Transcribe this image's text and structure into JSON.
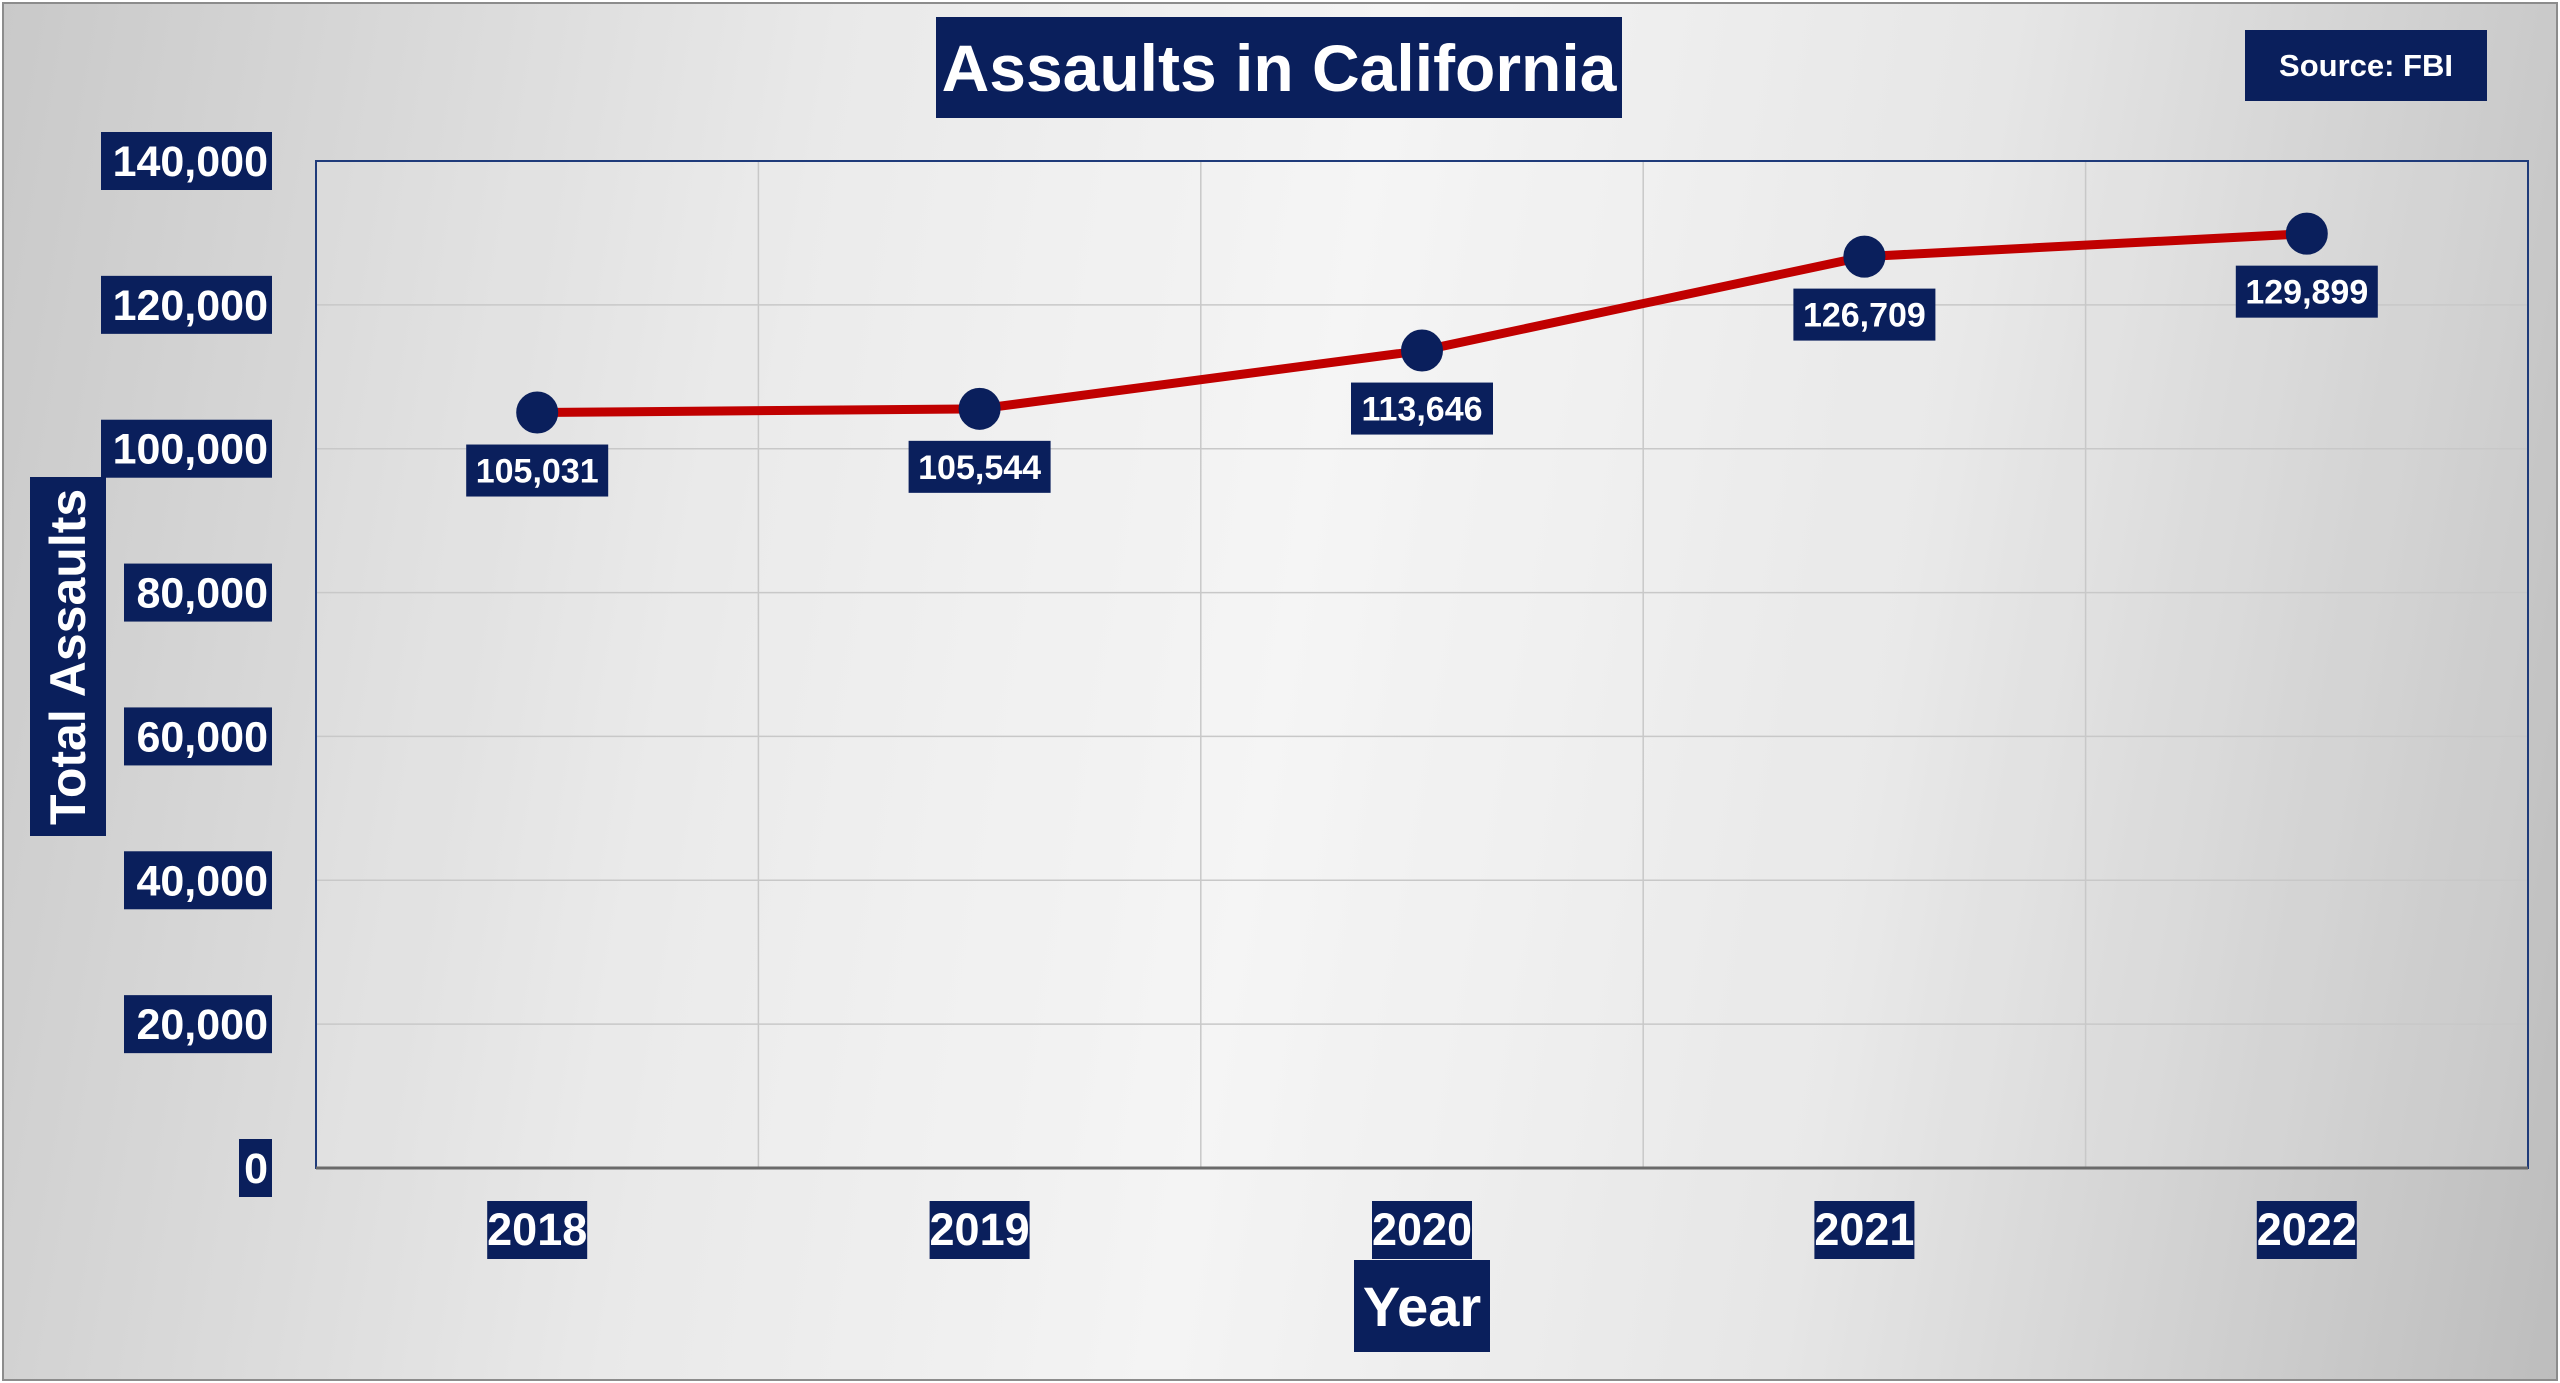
{
  "chart_data": {
    "type": "line",
    "title": "Assaults in California",
    "source": "Source: FBI",
    "xlabel": "Year",
    "ylabel": "Total Assaults",
    "categories": [
      "2018",
      "2019",
      "2020",
      "2021",
      "2022"
    ],
    "values": [
      105031,
      105544,
      113646,
      126709,
      129899
    ],
    "data_labels": [
      "105,031",
      "105,544",
      "113,646",
      "126,709",
      "129,899"
    ],
    "yticks": [
      0,
      20000,
      40000,
      60000,
      80000,
      100000,
      120000,
      140000
    ],
    "ytick_labels": [
      "0",
      "20,000",
      "40,000",
      "60,000",
      "80,000",
      "100,000",
      "120,000",
      "140,000"
    ],
    "ylim": [
      0,
      140000
    ],
    "grid": true,
    "legend": "none",
    "colors": {
      "line": "#c00000",
      "marker": "#0a1f5c",
      "label_bg": "#0a1f5c",
      "label_text": "#ffffff",
      "grid": "#c8c8c8",
      "axis": "#6a6a6a"
    }
  }
}
